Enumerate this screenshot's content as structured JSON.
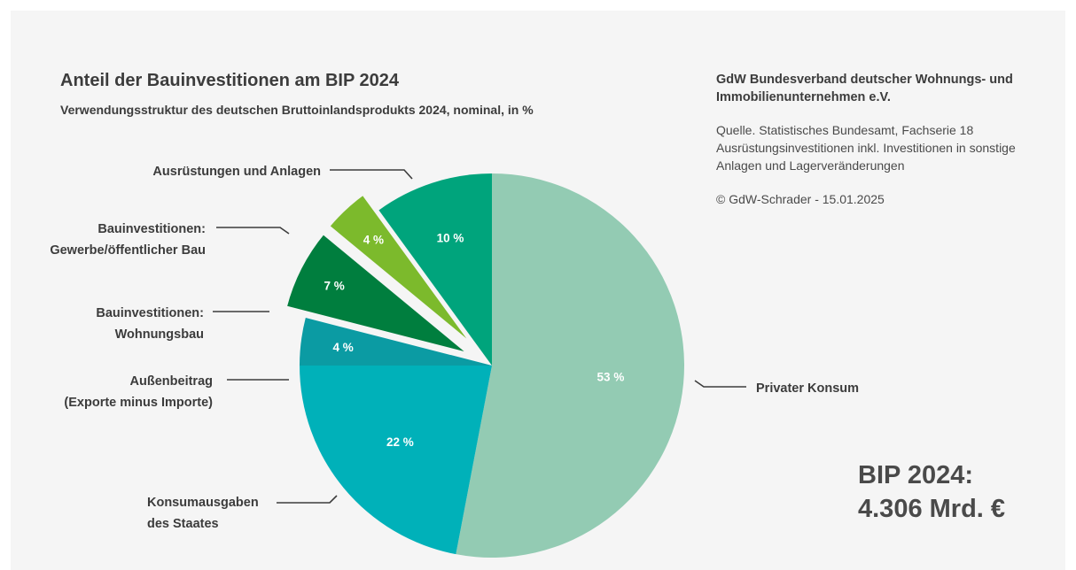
{
  "chart_data": {
    "type": "pie",
    "title": "Anteil der Bauinvestitionen am BIP 2024",
    "subtitle": "Verwendungsstruktur des deutschen Bruttoinlandsprodukts 2024, nominal, in %",
    "slices": [
      {
        "label": [
          "Privater Konsum"
        ],
        "value": 53,
        "value_label": "53 %",
        "color": "#93cbb3",
        "exploded": false
      },
      {
        "label": [
          "Konsumausgaben",
          "des Staates"
        ],
        "value": 22,
        "value_label": "22 %",
        "color": "#00b1b9",
        "exploded": false
      },
      {
        "label": [
          "Außenbeitrag",
          "(Exporte minus Importe)"
        ],
        "value": 4,
        "value_label": "4 %",
        "color": "#0b9ba3",
        "exploded": false
      },
      {
        "label": [
          "Bauinvestitionen:",
          "Wohnungsbau"
        ],
        "value": 7,
        "value_label": "7 %",
        "color": "#007e3e",
        "exploded": true
      },
      {
        "label": [
          "Bauinvestitionen:",
          "Gewerbe/öffentlicher Bau"
        ],
        "value": 4,
        "value_label": "4 %",
        "color": "#7cba2c",
        "exploded": true
      },
      {
        "label": [
          "Ausrüstungen und Anlagen"
        ],
        "value": 10,
        "value_label": "10 %",
        "color": "#00a47c",
        "exploded": false
      }
    ]
  },
  "publisher": "GdW Bundesverband deutscher Wohnungs- und Immobilienunternehmen e.V.",
  "source": "Quelle. Statistisches Bundesamt, Fachserie 18 Ausrüstungsinvestitionen inkl. Investitionen in sonstige Anlagen und Lagerveränderungen",
  "copyright": "© GdW-Schrader - 15.01.2025",
  "total": {
    "line1": "BIP 2024:",
    "line2": "4.306 Mrd. €"
  }
}
